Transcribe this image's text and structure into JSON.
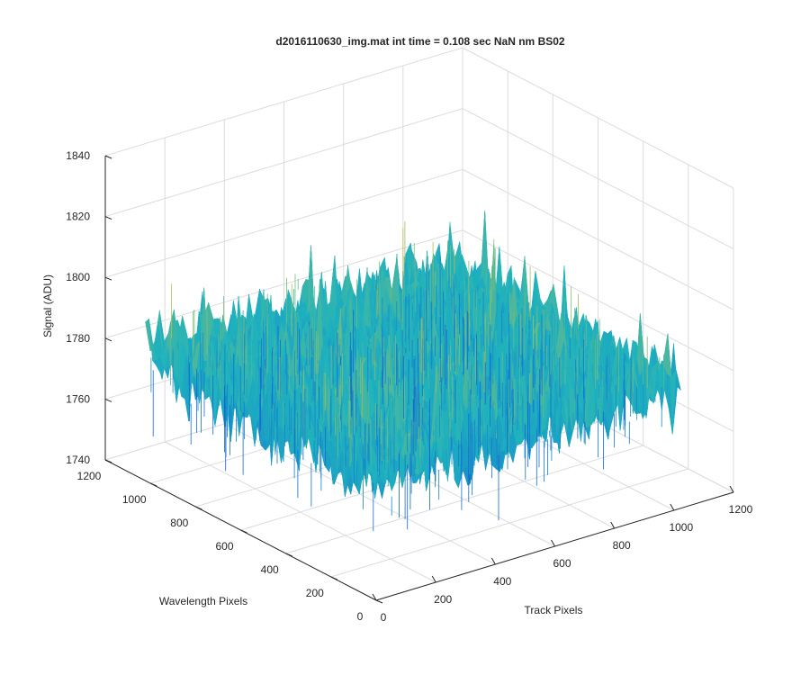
{
  "chart_data": {
    "type": "surface",
    "title": "d2016110630_img.mat int time = 0.108 sec  NaN nm BS02",
    "xlabel": "Track Pixels",
    "ylabel": "Wavelength Pixels",
    "zlabel": "Signal (ADU)",
    "xlim": [
      0,
      1200
    ],
    "ylim": [
      0,
      1200
    ],
    "zlim": [
      1740,
      1840
    ],
    "x_ticks": [
      0,
      200,
      400,
      600,
      800,
      1000,
      1200
    ],
    "y_ticks": [
      0,
      200,
      400,
      600,
      800,
      1000,
      1200
    ],
    "z_ticks": [
      1740,
      1760,
      1780,
      1800,
      1820,
      1840
    ],
    "x_tick_labels": [
      "0",
      "200",
      "400",
      "600",
      "800",
      "1000",
      "1200"
    ],
    "y_tick_labels": [
      "0",
      "200",
      "400",
      "600",
      "800",
      "1000",
      "1200"
    ],
    "z_tick_labels": [
      "1740",
      "1760",
      "1780",
      "1800",
      "1820",
      "1840"
    ],
    "surface": {
      "x_range": [
        1,
        1024
      ],
      "y_range": [
        1,
        1024
      ],
      "mean": 1780,
      "typical_range": [
        1755,
        1810
      ],
      "peak": 1830,
      "colormap": "parula",
      "color_low": "#0f63d8",
      "color_mid": "#1fb3bd",
      "color_high": "#d8c23a"
    },
    "grid": true,
    "view": "3d"
  }
}
